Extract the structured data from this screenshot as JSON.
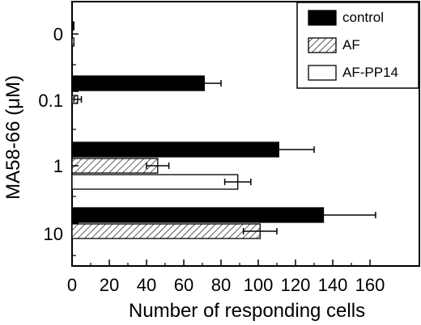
{
  "chart_data": {
    "type": "bar",
    "orientation": "horizontal",
    "categories": [
      "0",
      "0.1",
      "1",
      "10"
    ],
    "xlabel": "Number of responding cells",
    "ylabel": "MA58-66 (μM)",
    "xlim": [
      0,
      165
    ],
    "xticks": [
      0,
      20,
      40,
      60,
      80,
      100,
      120,
      140,
      160
    ],
    "grid": false,
    "legend_position": "top-right",
    "series": [
      {
        "name": "control",
        "fill": "solid",
        "color": "#000000",
        "values": [
          1,
          71,
          111,
          135
        ],
        "errors": [
          0,
          9,
          19,
          28
        ]
      },
      {
        "name": "AF",
        "fill": "hatched",
        "color": "#000000",
        "values": [
          1,
          3,
          46,
          101
        ],
        "errors": [
          0,
          2,
          6,
          9
        ]
      },
      {
        "name": "AF-PP14",
        "fill": "white",
        "color": "#000000",
        "values": [
          0,
          0,
          89,
          0
        ],
        "errors": [
          0,
          0,
          7,
          0
        ]
      }
    ]
  }
}
